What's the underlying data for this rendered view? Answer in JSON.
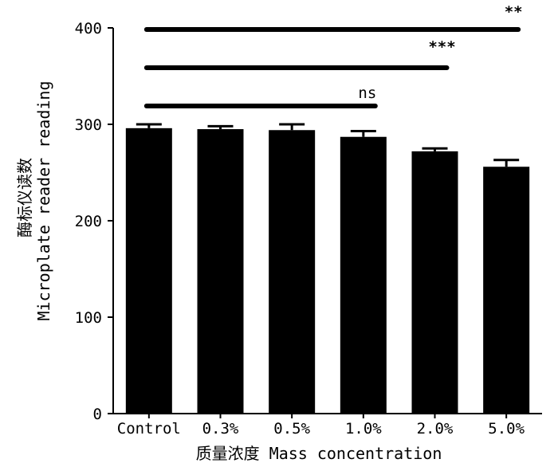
{
  "chart_data": {
    "type": "bar",
    "categories": [
      "Control",
      "0.3%",
      "0.5%",
      "1.0%",
      "2.0%",
      "5.0%"
    ],
    "values": [
      296,
      295,
      294,
      287,
      272,
      256
    ],
    "errors": [
      4,
      3,
      6,
      6,
      3,
      7
    ],
    "ylim": [
      0,
      400
    ],
    "yticks": [
      0,
      100,
      200,
      300,
      400
    ],
    "ylabel_line1": "酶标仪读数",
    "ylabel_line2": "Microplate reader reading",
    "xlabel": "质量浓度 Mass concentration",
    "significance": [
      {
        "label": "ns",
        "from": "Control",
        "to": "1.0%"
      },
      {
        "label": "***",
        "from": "Control",
        "to": "2.0%"
      },
      {
        "label": "**",
        "from": "Control",
        "to": "5.0%"
      }
    ],
    "bar_color": "#000000"
  }
}
